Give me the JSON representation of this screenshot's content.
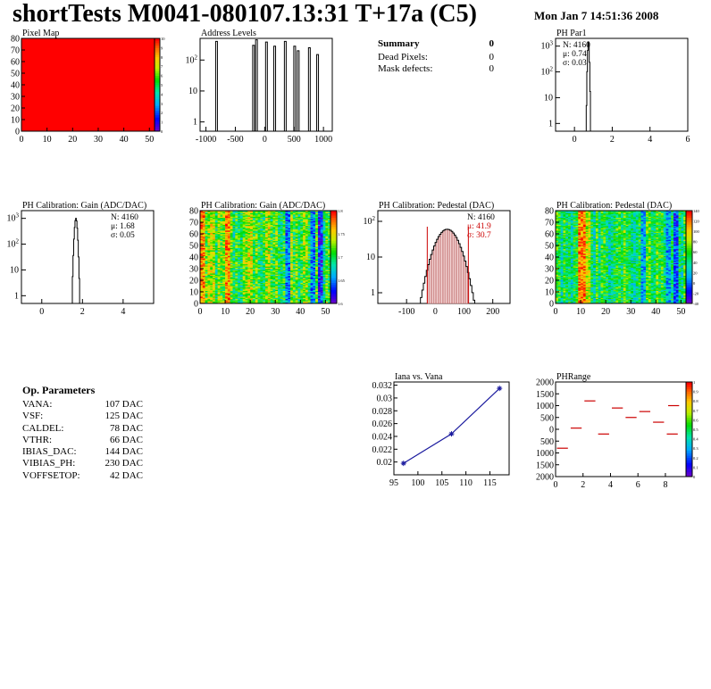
{
  "header": {
    "title": "shortTests M0041-080107.13:31 T+17a (C5)",
    "timestamp": "Mon Jan  7 14:51:36 2008"
  },
  "summary": {
    "title": "Summary",
    "total": "0",
    "rows": [
      {
        "label": "Dead Pixels:",
        "value": "0"
      },
      {
        "label": "Mask defects:",
        "value": "0"
      }
    ]
  },
  "op_params": {
    "title": "Op. Parameters",
    "rows": [
      {
        "label": "VANA:",
        "value": "107 DAC"
      },
      {
        "label": "VSF:",
        "value": "125 DAC"
      },
      {
        "label": "CALDEL:",
        "value": "78 DAC"
      },
      {
        "label": "VTHR:",
        "value": "66 DAC"
      },
      {
        "label": "IBIAS_DAC:",
        "value": "144 DAC"
      },
      {
        "label": "VIBIAS_PH:",
        "value": "230 DAC"
      },
      {
        "label": "VOFFSETOP:",
        "value": "42 DAC"
      }
    ]
  },
  "chart_data": [
    {
      "id": "pixel-map",
      "type": "heatmap",
      "title": "Pixel Map",
      "xlim": [
        0,
        52
      ],
      "ylim": [
        0,
        80
      ],
      "xticks": [
        "0",
        "10",
        "20",
        "30",
        "40",
        "50"
      ],
      "yticks": [
        "0",
        "10",
        "20",
        "30",
        "40",
        "50",
        "60",
        "70",
        "80"
      ],
      "uniform_value": 10,
      "zlim": [
        0,
        10
      ],
      "zticks": [
        "0",
        "1",
        "2",
        "3",
        "4",
        "5",
        "6",
        "7",
        "8",
        "9",
        "10"
      ],
      "fill_color": "#ff0000"
    },
    {
      "id": "address-levels",
      "type": "bar",
      "title": "Address Levels",
      "xlim": [
        -1100,
        1150
      ],
      "xticks": [
        "-1000",
        "-500",
        "0",
        "500",
        "1000"
      ],
      "ylog": true,
      "yticks": [
        "1",
        "10",
        "10^2"
      ],
      "peaks": [
        {
          "x": -820,
          "y": 400
        },
        {
          "x": -190,
          "y": 300
        },
        {
          "x": -140,
          "y": 450
        },
        {
          "x": 30,
          "y": 380
        },
        {
          "x": 170,
          "y": 280
        },
        {
          "x": 350,
          "y": 400
        },
        {
          "x": 510,
          "y": 280
        },
        {
          "x": 570,
          "y": 200
        },
        {
          "x": 760,
          "y": 250
        },
        {
          "x": 900,
          "y": 150
        }
      ]
    },
    {
      "id": "ph-par1",
      "type": "bar",
      "title": "PH Par1",
      "xlim": [
        -1,
        6
      ],
      "xticks": [
        "0",
        "2",
        "4",
        "6"
      ],
      "ylog": true,
      "yticks": [
        "1",
        "10",
        "10^2",
        "10^3"
      ],
      "stats": [
        "N: 4160",
        "μ: 0.74",
        "σ: 0.03"
      ],
      "peak_mean": 0.74,
      "peak_sigma": 0.03,
      "peak_max": 1500
    },
    {
      "id": "ph-gain-hist",
      "type": "bar",
      "title": "PH Calibration: Gain (ADC/DAC)",
      "xlim": [
        -1,
        5.5
      ],
      "xticks": [
        "0",
        "2",
        "4"
      ],
      "ylog": true,
      "yticks": [
        "1",
        "10",
        "10^2",
        "10^3"
      ],
      "stats": [
        "N: 4160",
        "μ: 1.68",
        "σ: 0.05"
      ],
      "peak_mean": 1.68,
      "peak_sigma": 0.05,
      "peak_max": 1000
    },
    {
      "id": "ph-gain-map",
      "type": "heatmap",
      "title": "PH Calibration: Gain (ADC/DAC)",
      "xlim": [
        0,
        52
      ],
      "ylim": [
        0,
        80
      ],
      "xticks": [
        "0",
        "10",
        "20",
        "30",
        "40",
        "50"
      ],
      "yticks": [
        "0",
        "10",
        "20",
        "30",
        "40",
        "50",
        "60",
        "70",
        "80"
      ],
      "zticks": [
        "1.6",
        "1.65",
        "1.7",
        "1.75",
        "1.8"
      ]
    },
    {
      "id": "ph-pedestal-hist",
      "type": "bar",
      "title": "PH Calibration: Pedestal (DAC)",
      "xlim": [
        -200,
        260
      ],
      "xticks": [
        "-100",
        "0",
        "100",
        "200"
      ],
      "ylog": true,
      "yticks": [
        "1",
        "10",
        "10^2"
      ],
      "stats": [
        "N: 4160",
        "μ: 41.9",
        "σ: 30.7"
      ],
      "stats_colors": [
        "#000000",
        "#cc0000",
        "#cc0000"
      ],
      "peak_mean": 41.9,
      "peak_sigma": 30.7,
      "peak_max": 60,
      "cut_lines": [
        -28,
        115
      ]
    },
    {
      "id": "ph-pedestal-map",
      "type": "heatmap",
      "title": "PH Calibration: Pedestal (DAC)",
      "xlim": [
        0,
        52
      ],
      "ylim": [
        0,
        80
      ],
      "xticks": [
        "0",
        "10",
        "20",
        "30",
        "40",
        "50"
      ],
      "yticks": [
        "0",
        "10",
        "20",
        "30",
        "40",
        "50",
        "60",
        "70",
        "80"
      ],
      "zticks": [
        "-40",
        "-20",
        "0",
        "20",
        "40",
        "60",
        "80",
        "100",
        "120",
        "140"
      ]
    },
    {
      "id": "iana-vs-vana",
      "type": "line",
      "title": "Iana vs. Vana",
      "xlim": [
        95,
        119
      ],
      "ylim": [
        0.018,
        0.0325
      ],
      "xticks": [
        "95",
        "100",
        "105",
        "110",
        "115"
      ],
      "yticks": [
        "0.02",
        "0.022",
        "0.024",
        "0.026",
        "0.028",
        "0.03",
        "0.032"
      ],
      "x": [
        97,
        107,
        117
      ],
      "y": [
        0.0198,
        0.0244,
        0.0315
      ]
    },
    {
      "id": "ph-range",
      "type": "scatter",
      "title": "PHRange",
      "xlim": [
        0,
        9.5
      ],
      "ylim": [
        -2000,
        2000
      ],
      "xticks": [
        "0",
        "2",
        "4",
        "6",
        "8"
      ],
      "yticks": [
        "2000",
        "1500",
        "1000",
        "500",
        "0",
        "500",
        "1000",
        "1500",
        "2000"
      ],
      "x": [
        0.5,
        1.5,
        2.5,
        3.5,
        4.5,
        5.5,
        6.5,
        7.5,
        8.5
      ],
      "y": [
        -800,
        50,
        1200,
        -200,
        900,
        500,
        750,
        300,
        -200
      ],
      "extra_marker": {
        "x": 8.6,
        "y": 1000
      },
      "zticks": [
        "0",
        "0.1",
        "0.2",
        "0.3",
        "0.4",
        "0.5",
        "0.6",
        "0.7",
        "0.8",
        "0.9",
        "1"
      ]
    }
  ]
}
